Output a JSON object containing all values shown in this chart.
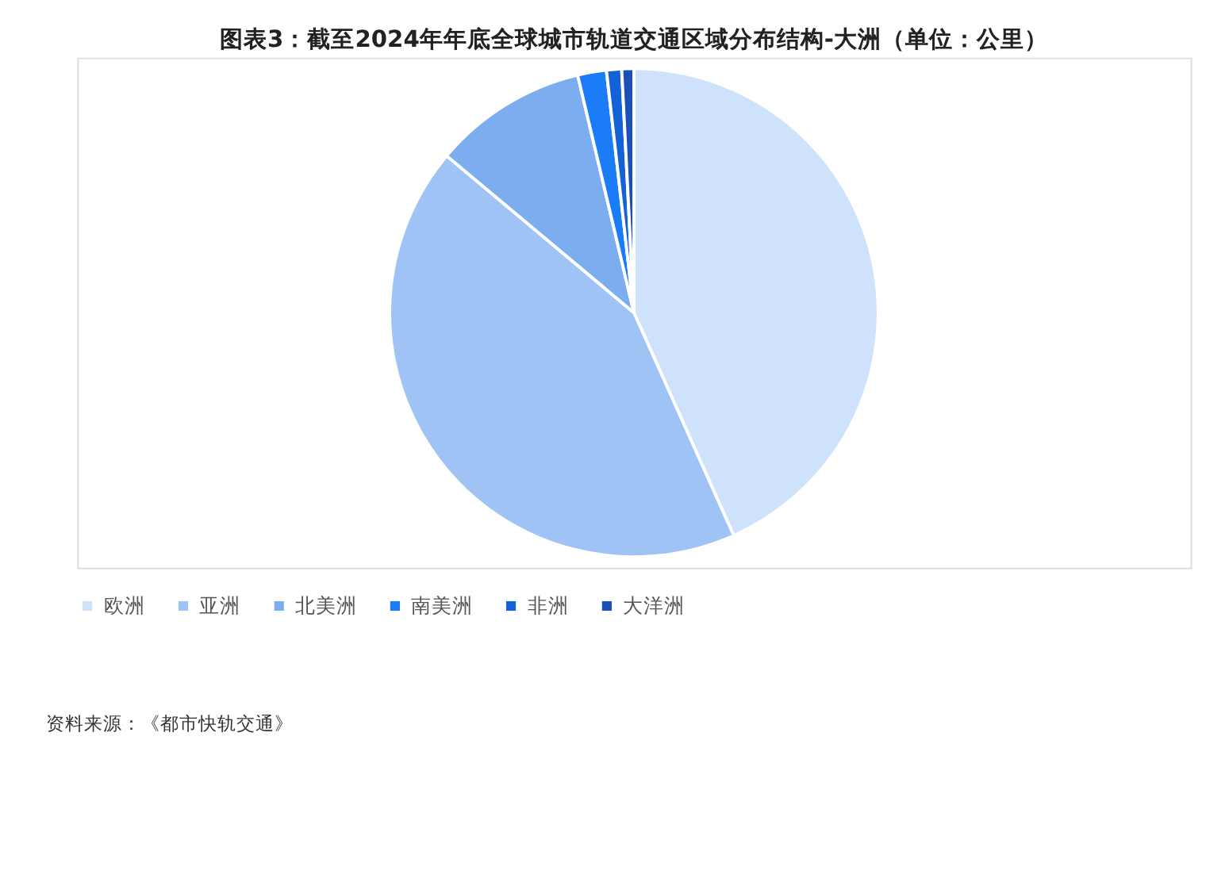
{
  "chart_data": {
    "type": "pie",
    "title": "图表3：截至2024年年底全球城市轨道交通区域分布结构-大洲（单位：公里）",
    "categories": [
      "欧洲",
      "亚洲",
      "北美洲",
      "南美洲",
      "非洲",
      "大洋洲"
    ],
    "values": [
      43.3,
      42.8,
      10.2,
      1.9,
      1.0,
      0.8
    ],
    "colors": [
      "#cfe2fc",
      "#9ec3f4",
      "#7badef",
      "#1a7cf6",
      "#1462d8",
      "#1a4fb8"
    ],
    "legend": "bottom",
    "annotations": [
      "资料来源：《都市快轨交通》"
    ]
  }
}
